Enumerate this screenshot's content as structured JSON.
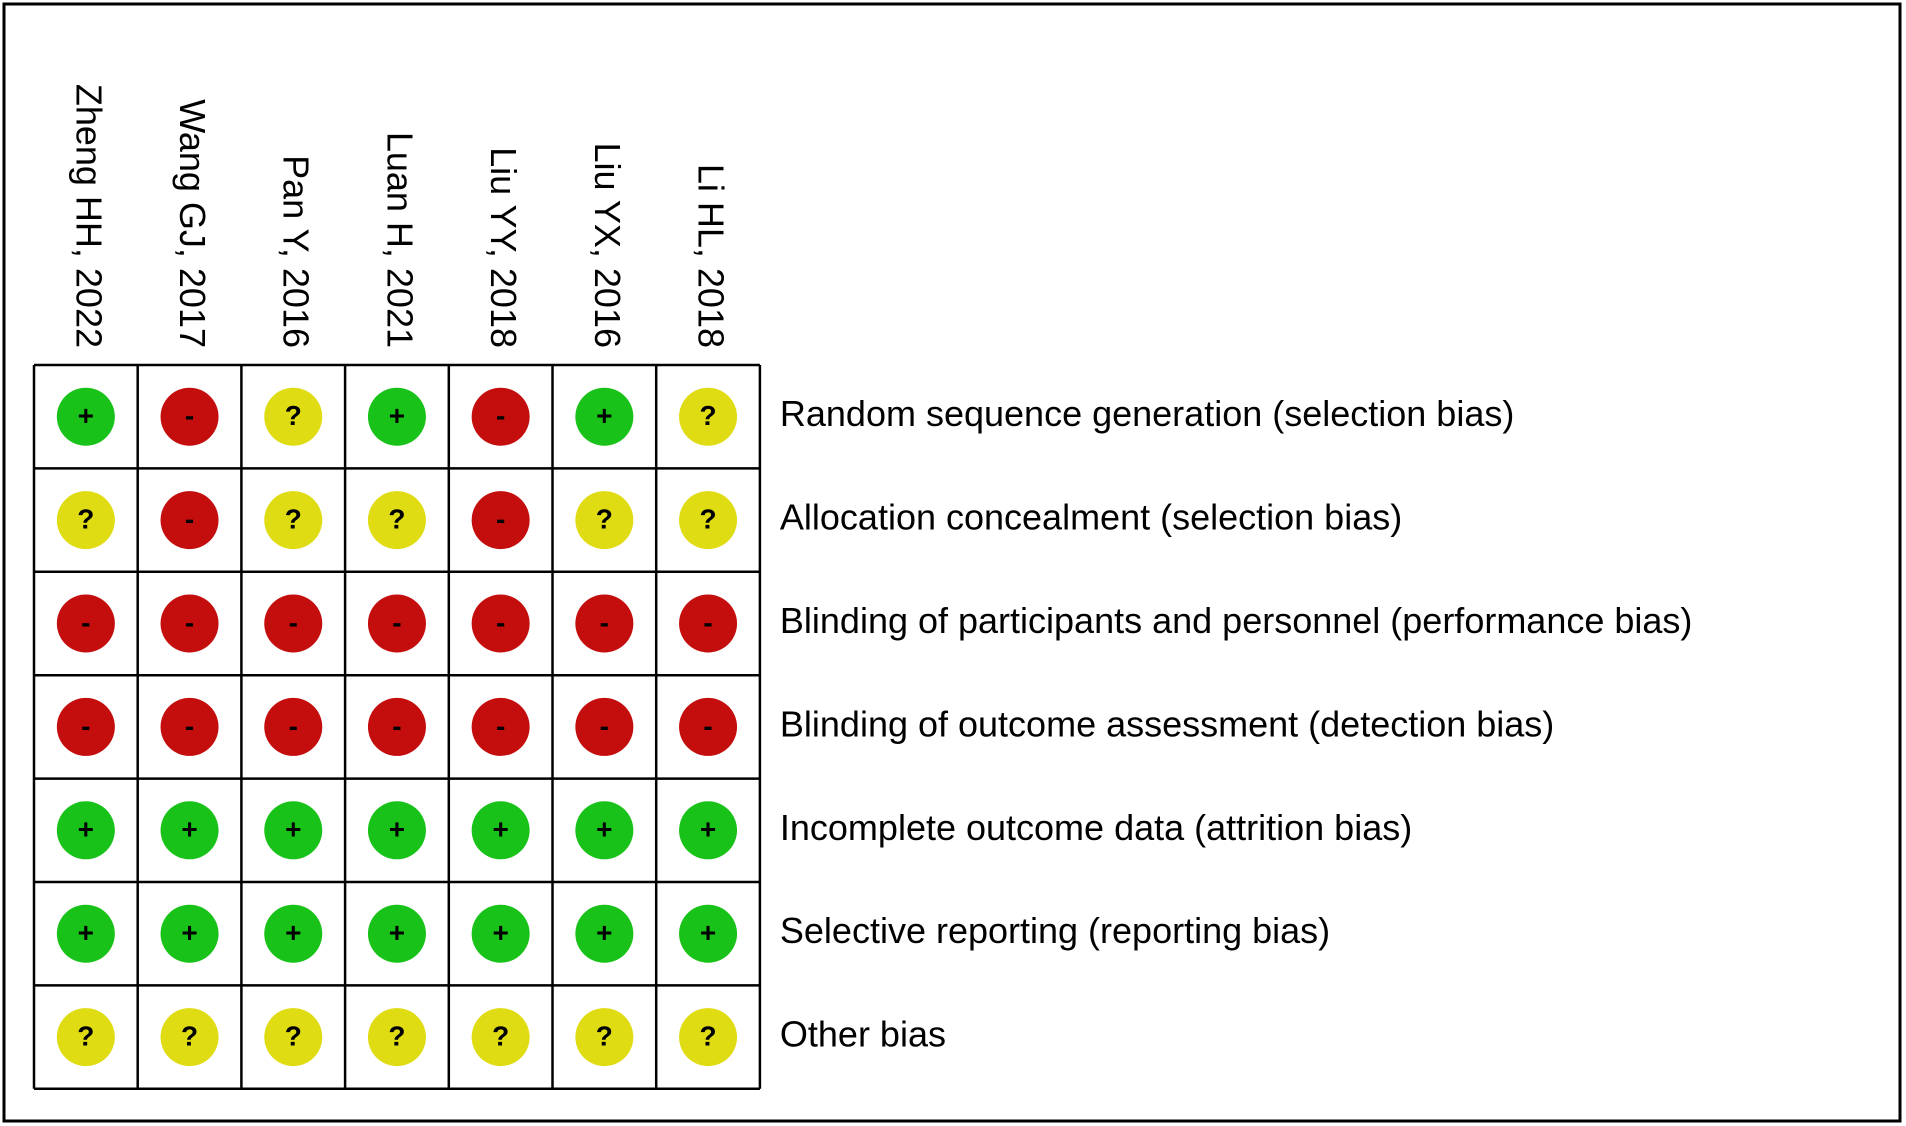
{
  "studies": [
    "Zheng HH, 2022",
    "Wang GJ, 2017",
    "Pan Y, 2016",
    "Luan H, 2021",
    "Liu YY, 2018",
    "Liu YX, 2016",
    "Li HL, 2018"
  ],
  "domains": [
    "Random sequence generation (selection bias)",
    "Allocation concealment (selection bias)",
    "Blinding of participants and personnel (performance bias)",
    "Blinding of outcome assessment (detection bias)",
    "Incomplete outcome data (attrition bias)",
    "Selective reporting (reporting bias)",
    "Other bias"
  ],
  "judgments": [
    [
      "+",
      "-",
      "?",
      "+",
      "-",
      "+",
      "?"
    ],
    [
      "?",
      "-",
      "?",
      "?",
      "-",
      "?",
      "?"
    ],
    [
      "-",
      "-",
      "-",
      "-",
      "-",
      "-",
      "-"
    ],
    [
      "-",
      "-",
      "-",
      "-",
      "-",
      "-",
      "-"
    ],
    [
      "+",
      "+",
      "+",
      "+",
      "+",
      "+",
      "+"
    ],
    [
      "+",
      "+",
      "+",
      "+",
      "+",
      "+",
      "+"
    ],
    [
      "?",
      "?",
      "?",
      "?",
      "?",
      "?",
      "?"
    ]
  ],
  "symbol_colors": {
    "+": "#19c219",
    "-": "#c40d0d",
    "?": "#e0dc13"
  }
}
